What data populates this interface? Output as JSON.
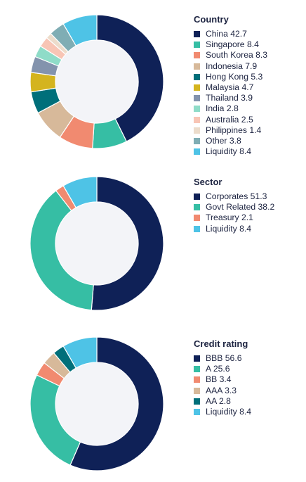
{
  "chart_data": [
    {
      "type": "pie",
      "title": "Country",
      "categories": [
        "China",
        "Singapore",
        "South Korea",
        "Indonesia",
        "Hong Kong",
        "Malaysia",
        "Thailand",
        "India",
        "Australia",
        "Philippines",
        "Other",
        "Liquidity"
      ],
      "values": [
        42.7,
        8.4,
        8.3,
        7.9,
        5.3,
        4.7,
        3.9,
        2.8,
        2.5,
        1.4,
        3.8,
        8.4
      ],
      "labels": [
        "China 42.7",
        "Singapore 8.4",
        "South Korea 8.3",
        "Indonesia 7.9",
        "Hong Kong 5.3",
        "Malaysia 4.7",
        "Thailand 3.9",
        "India 2.8",
        "Australia 2.5",
        "Philippines 1.4",
        "Other 3.8",
        "Liquidity 8.4"
      ],
      "colors": [
        "#0f2157",
        "#36bea4",
        "#f18a70",
        "#d7b99a",
        "#006f7a",
        "#d4b41e",
        "#8393ad",
        "#8fdcc8",
        "#f8c5b5",
        "#ecdccb",
        "#7fadb4",
        "#4ec3e6"
      ],
      "legend": "right"
    },
    {
      "type": "pie",
      "title": "Sector",
      "categories": [
        "Corporates",
        "Govt Related",
        "Treasury",
        "Liquidity"
      ],
      "values": [
        51.3,
        38.2,
        2.1,
        8.4
      ],
      "labels": [
        "Corporates 51.3",
        "Govt Related 38.2",
        "Treasury 2.1",
        "Liquidity 8.4"
      ],
      "colors": [
        "#0f2157",
        "#36bea4",
        "#f18a70",
        "#4ec3e6"
      ],
      "legend": "right"
    },
    {
      "type": "pie",
      "title": "Credit rating",
      "categories": [
        "BBB",
        "A",
        "BB",
        "AAA",
        "AA",
        "Liquidity"
      ],
      "values": [
        56.6,
        25.6,
        3.4,
        3.3,
        2.8,
        8.4
      ],
      "labels": [
        "BBB 56.6",
        "A 25.6",
        "BB 3.4",
        "AAA 3.3",
        "AA 2.8",
        "Liquidity 8.4"
      ],
      "colors": [
        "#0f2157",
        "#36bea4",
        "#f18a70",
        "#d7b99a",
        "#006f7a",
        "#4ec3e6"
      ],
      "legend": "right"
    }
  ]
}
